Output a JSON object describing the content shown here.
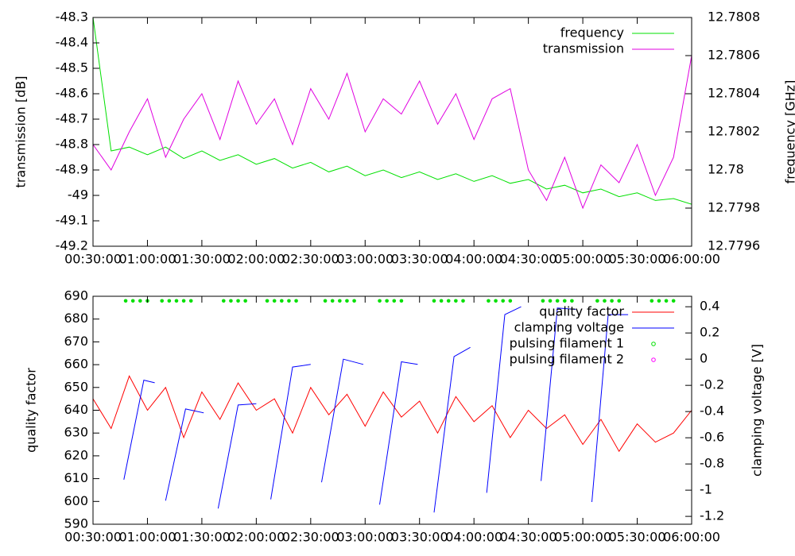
{
  "chart_data": [
    {
      "type": "line",
      "ylabel": "transmission [dB]",
      "y2label": "frequency [GHz]",
      "x": [
        "00:30:00",
        "00:40:00",
        "00:50:00",
        "01:00:00",
        "01:10:00",
        "01:20:00",
        "01:30:00",
        "01:40:00",
        "01:50:00",
        "02:00:00",
        "02:10:00",
        "02:20:00",
        "02:30:00",
        "02:40:00",
        "02:50:00",
        "03:00:00",
        "03:10:00",
        "03:20:00",
        "03:30:00",
        "03:40:00",
        "03:50:00",
        "04:00:00",
        "04:10:00",
        "04:20:00",
        "04:30:00",
        "04:40:00",
        "04:50:00",
        "05:00:00",
        "05:10:00",
        "05:20:00",
        "05:30:00",
        "05:40:00",
        "05:50:00",
        "06:00:00"
      ],
      "xlim": [
        "00:30:00",
        "06:00:00"
      ],
      "xticks": [
        "00:30:00",
        "01:00:00",
        "01:30:00",
        "02:00:00",
        "02:30:00",
        "03:00:00",
        "03:30:00",
        "04:00:00",
        "04:30:00",
        "05:00:00",
        "05:30:00",
        "06:00:00"
      ],
      "ylim": [
        -49.2,
        -48.3
      ],
      "yticks": [
        -48.3,
        -48.4,
        -48.5,
        -48.6,
        -48.7,
        -48.8,
        -48.9,
        -49,
        -49.1,
        -49.2
      ],
      "y2lim": [
        12.7796,
        12.7808
      ],
      "y2ticks": [
        12.7796,
        12.7798,
        12.78,
        12.7802,
        12.7804,
        12.7806,
        12.7808
      ],
      "legend": "top right",
      "series": [
        {
          "name": "frequency",
          "color": "#00e000",
          "axis": "y2",
          "values": [
            12.7808,
            12.7801,
            12.78012,
            12.78008,
            12.78012,
            12.78006,
            12.7801,
            12.78005,
            12.78008,
            12.78003,
            12.78006,
            12.78001,
            12.78004,
            12.77999,
            12.78002,
            12.77997,
            12.78,
            12.77996,
            12.77999,
            12.77995,
            12.77998,
            12.77994,
            12.77997,
            12.77993,
            12.77995,
            12.7799,
            12.77992,
            12.77988,
            12.7799,
            12.77986,
            12.77988,
            12.77984,
            12.77985,
            12.77982
          ]
        },
        {
          "name": "transmission",
          "color": "#e000e0",
          "values": [
            -48.8,
            -48.9,
            -48.75,
            -48.62,
            -48.85,
            -48.7,
            -48.6,
            -48.78,
            -48.55,
            -48.72,
            -48.62,
            -48.8,
            -48.58,
            -48.7,
            -48.52,
            -48.75,
            -48.62,
            -48.68,
            -48.55,
            -48.72,
            -48.6,
            -48.78,
            -48.62,
            -48.58,
            -48.9,
            -49.02,
            -48.85,
            -49.05,
            -48.88,
            -48.95,
            -48.8,
            -49,
            -48.85,
            -48.45
          ]
        }
      ]
    },
    {
      "type": "line",
      "ylabel": "quality factor",
      "y2label": "clamping voltage [V]",
      "xlim": [
        "00:30:00",
        "06:00:00"
      ],
      "xticks": [
        "00:30:00",
        "01:00:00",
        "01:30:00",
        "02:00:00",
        "02:30:00",
        "03:00:00",
        "03:30:00",
        "04:00:00",
        "04:30:00",
        "05:00:00",
        "05:30:00",
        "06:00:00"
      ],
      "ylim": [
        590,
        690
      ],
      "yticks": [
        590,
        600,
        610,
        620,
        630,
        640,
        650,
        660,
        670,
        680,
        690
      ],
      "y2lim": [
        -1.26,
        0.48
      ],
      "y2ticks": [
        -1.2,
        -1,
        -0.8,
        -0.6,
        -0.4,
        -0.2,
        0,
        0.2,
        0.4
      ],
      "legend": "top right",
      "series": [
        {
          "name": "quality factor",
          "color": "#ff0000",
          "x": [
            "00:30:00",
            "00:40:00",
            "00:50:00",
            "01:00:00",
            "01:10:00",
            "01:20:00",
            "01:30:00",
            "01:40:00",
            "01:50:00",
            "02:00:00",
            "02:10:00",
            "02:20:00",
            "02:30:00",
            "02:40:00",
            "02:50:00",
            "03:00:00",
            "03:10:00",
            "03:20:00",
            "03:30:00",
            "03:40:00",
            "03:50:00",
            "04:00:00",
            "04:10:00",
            "04:20:00",
            "04:30:00",
            "04:40:00",
            "04:50:00",
            "05:00:00",
            "05:10:00",
            "05:20:00",
            "05:30:00",
            "05:40:00",
            "05:50:00",
            "06:00:00"
          ],
          "values": [
            645,
            632,
            655,
            640,
            650,
            628,
            648,
            636,
            652,
            640,
            645,
            630,
            650,
            638,
            647,
            633,
            648,
            637,
            644,
            630,
            646,
            635,
            642,
            628,
            640,
            632,
            638,
            625,
            636,
            622,
            634,
            626,
            630,
            640
          ]
        },
        {
          "name": "clamping voltage",
          "color": "#0000ff",
          "axis": "y2",
          "x": [
            "00:47:00",
            "00:58:00",
            "01:04:00",
            "01:05:00",
            "01:10:00",
            "01:21:00",
            "01:31:00",
            "01:32:00",
            "01:39:00",
            "01:50:00",
            "02:00:00",
            "02:01:00",
            "02:08:00",
            "02:20:00",
            "02:30:00",
            "02:31:00",
            "02:36:00",
            "02:48:00",
            "02:59:00",
            "03:00:00",
            "03:08:00",
            "03:20:00",
            "03:29:00",
            "03:30:00",
            "03:38:00",
            "03:49:00",
            "03:58:00",
            "03:59:00",
            "04:07:00",
            "04:17:00",
            "04:26:00",
            "04:27:00",
            "04:37:00",
            "04:46:00",
            "04:56:00",
            "04:57:00",
            "05:05:00",
            "05:14:00",
            "05:25:00"
          ],
          "values": [
            -0.92,
            -0.16,
            -0.18,
            null,
            -1.08,
            -0.38,
            -0.41,
            null,
            -1.14,
            -0.35,
            -0.34,
            null,
            -1.07,
            -0.06,
            -0.04,
            null,
            -0.94,
            0,
            -0.04,
            null,
            -1.11,
            -0.02,
            -0.04,
            null,
            -1.17,
            0.02,
            0.09,
            null,
            -1.02,
            0.34,
            0.4,
            null,
            -0.93,
            0.39,
            0.38,
            null,
            -1.09,
            0.34,
            0.34
          ]
        },
        {
          "name": "pulsing filament 1",
          "color": "#00e000",
          "mode": "points",
          "x": [
            "00:48:00",
            "00:52:00",
            "00:56:00",
            "01:00:00",
            "01:08:00",
            "01:12:00",
            "01:16:00",
            "01:20:00",
            "01:24:00",
            "01:42:00",
            "01:46:00",
            "01:50:00",
            "01:54:00",
            "02:06:00",
            "02:10:00",
            "02:14:00",
            "02:18:00",
            "02:22:00",
            "02:38:00",
            "02:42:00",
            "02:46:00",
            "02:50:00",
            "02:54:00",
            "03:08:00",
            "03:12:00",
            "03:16:00",
            "03:20:00",
            "03:38:00",
            "03:42:00",
            "03:46:00",
            "03:50:00",
            "03:54:00",
            "04:08:00",
            "04:12:00",
            "04:16:00",
            "04:20:00",
            "04:38:00",
            "04:42:00",
            "04:46:00",
            "04:50:00",
            "04:54:00",
            "05:08:00",
            "05:12:00",
            "05:16:00",
            "05:20:00",
            "05:38:00",
            "05:42:00",
            "05:46:00",
            "05:50:00"
          ],
          "values": [
            688,
            688,
            688,
            688,
            688,
            688,
            688,
            688,
            688,
            688,
            688,
            688,
            688,
            688,
            688,
            688,
            688,
            688,
            688,
            688,
            688,
            688,
            688,
            688,
            688,
            688,
            688,
            688,
            688,
            688,
            688,
            688,
            688,
            688,
            688,
            688,
            688,
            688,
            688,
            688,
            688,
            688,
            688,
            688,
            688,
            688,
            688,
            688,
            688
          ]
        },
        {
          "name": "pulsing filament 2",
          "color": "#ff00ff",
          "mode": "points",
          "x": [],
          "values": []
        }
      ]
    }
  ]
}
